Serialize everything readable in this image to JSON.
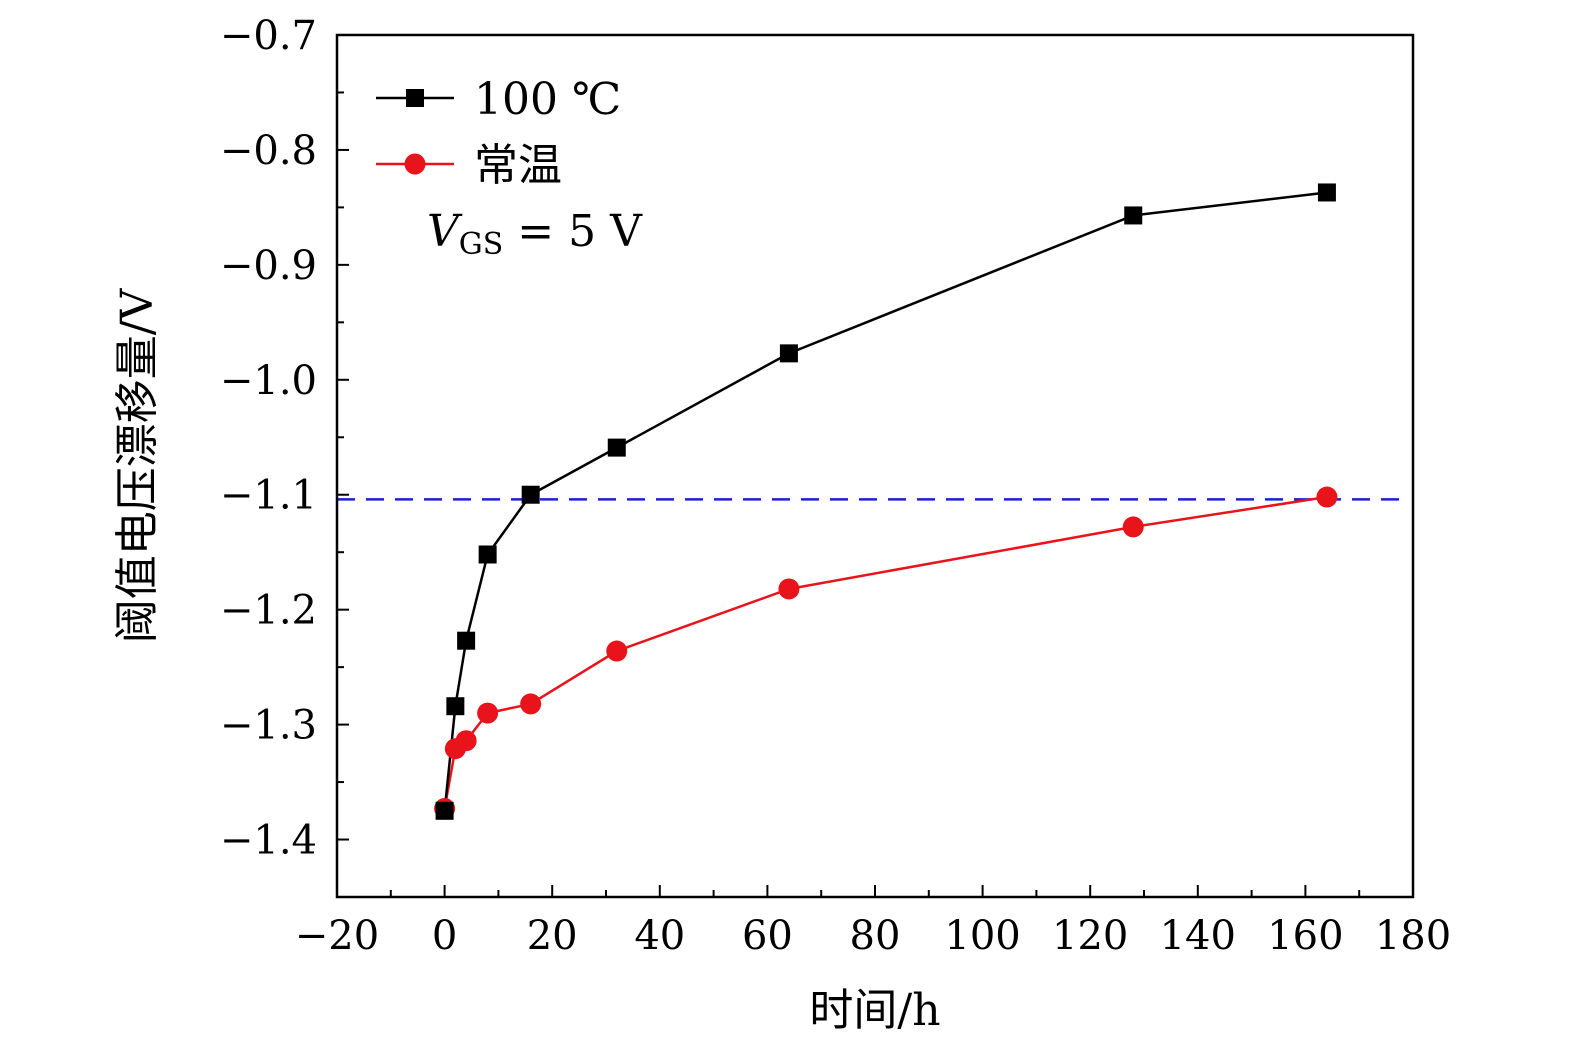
{
  "chart_data": {
    "type": "line",
    "xlabel": "时间/h",
    "ylabel": "阈值电压漂移量/V",
    "xlim": [
      -20,
      180
    ],
    "ylim": [
      -1.45,
      -0.7
    ],
    "x_ticks": [
      -20,
      0,
      20,
      40,
      60,
      80,
      100,
      120,
      140,
      160,
      180
    ],
    "x_tick_labels": [
      "−20",
      "0",
      "20",
      "40",
      "60",
      "80",
      "100",
      "120",
      "140",
      "160",
      "180"
    ],
    "y_ticks": [
      -0.7,
      -0.8,
      -0.9,
      -1.0,
      -1.1,
      -1.2,
      -1.3,
      -1.4
    ],
    "y_tick_labels": [
      "−0.7",
      "−0.8",
      "−0.9",
      "−1.0",
      "−1.1",
      "−1.2",
      "−1.3",
      "−1.4"
    ],
    "grid": false,
    "legend_position": "top-left",
    "series": [
      {
        "name": "100 ℃",
        "color": "#000000",
        "marker": "square",
        "x": [
          0,
          2,
          4,
          8,
          16,
          32,
          64,
          128,
          164
        ],
        "y": [
          -1.375,
          -1.284,
          -1.227,
          -1.152,
          -1.1,
          -1.059,
          -0.977,
          -0.857,
          -0.837
        ]
      },
      {
        "name": "常温",
        "color": "#e8131b",
        "marker": "circle",
        "x": [
          0,
          2,
          4,
          8,
          16,
          32,
          64,
          128,
          164
        ],
        "y": [
          -1.373,
          -1.321,
          -1.314,
          -1.29,
          -1.282,
          -1.236,
          -1.182,
          -1.128,
          -1.102
        ]
      }
    ],
    "reference_line": {
      "y": -1.104,
      "color": "#1f1fd6",
      "style": "dashed"
    },
    "annotation": {
      "var": "V",
      "sub": "GS",
      "rest": " = 5 V"
    }
  }
}
